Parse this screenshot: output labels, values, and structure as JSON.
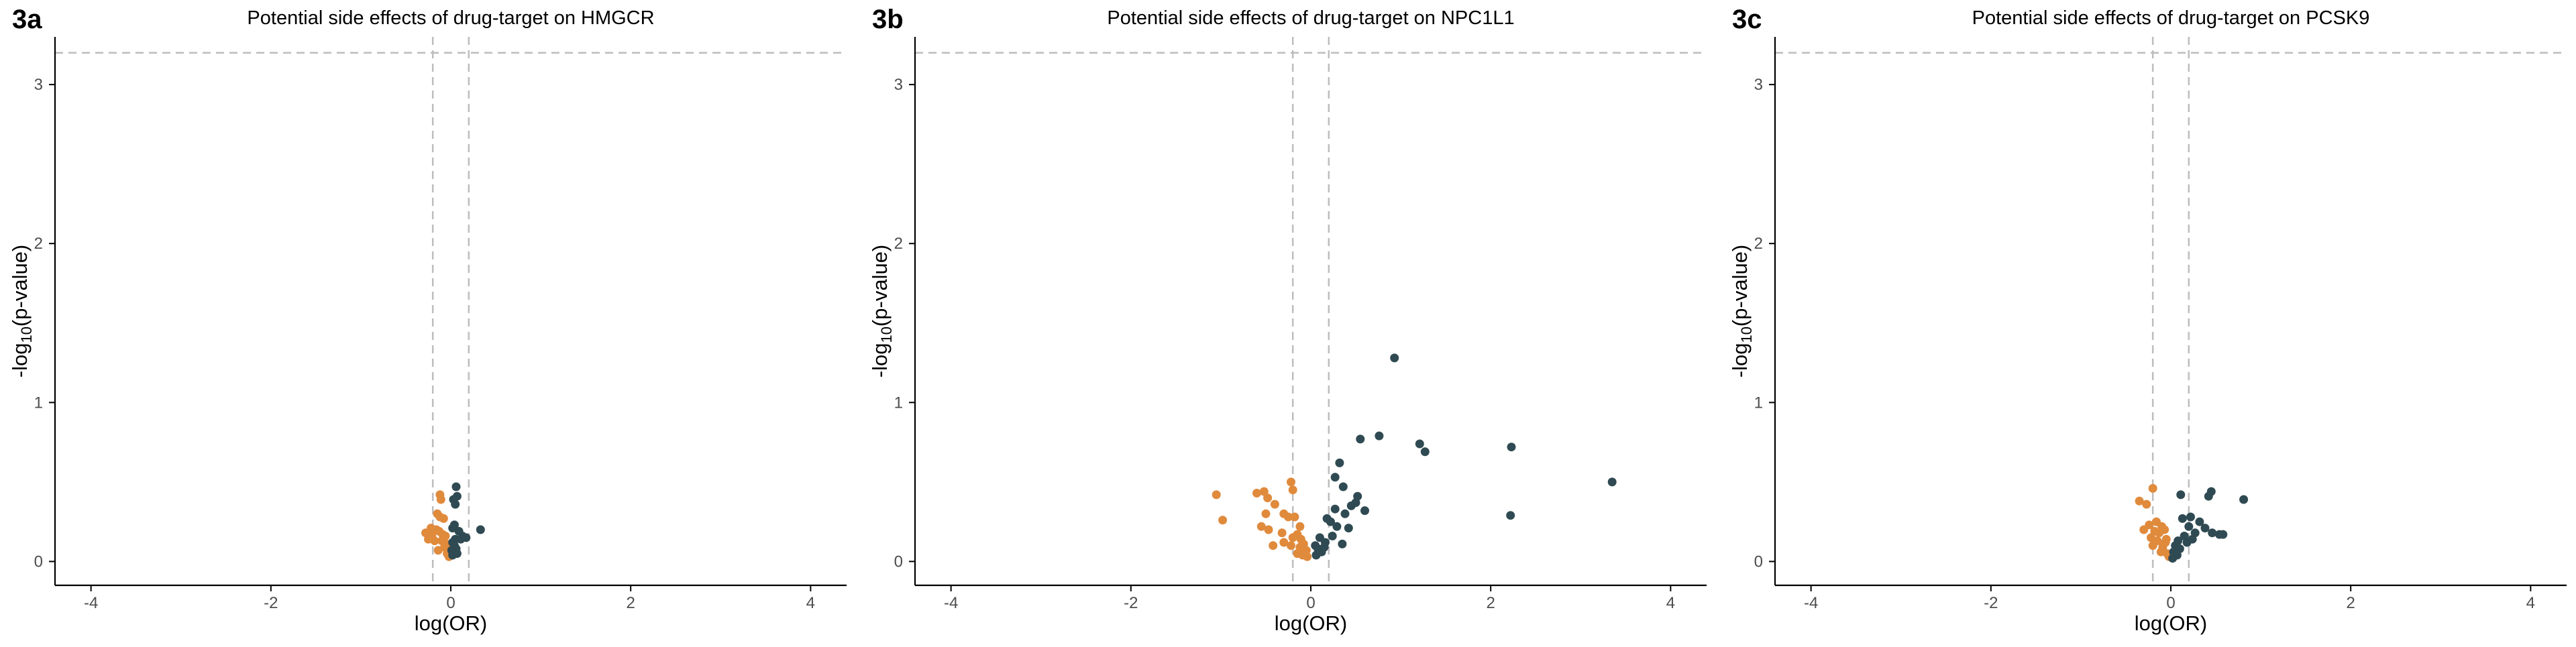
{
  "figure": {
    "colors": {
      "negative": "#E08A3C",
      "positive": "#2F4A52",
      "guide": "#BDBDBD",
      "axis": "#000000",
      "tick_text": "#4d4d4d"
    },
    "guides": {
      "x": [
        -0.2,
        0.2
      ],
      "y": 3.2
    }
  },
  "chart_data": [
    {
      "panel": "3a",
      "type": "scatter",
      "title": "Potential side effects of drug-target on HMGCR",
      "xlabel": "log(OR)",
      "ylabel": "-log10(p-value)",
      "xlim": [
        -4.4,
        4.4
      ],
      "ylim": [
        -0.15,
        3.3
      ],
      "x_ticks": [
        -4,
        -2,
        0,
        2,
        4
      ],
      "y_ticks": [
        0,
        1,
        2,
        3
      ],
      "grid": false,
      "series": [
        {
          "color": "#E08A3C",
          "points": [
            [
              -0.12,
              0.42
            ],
            [
              -0.11,
              0.39
            ],
            [
              -0.15,
              0.3
            ],
            [
              -0.12,
              0.28
            ],
            [
              -0.08,
              0.27
            ],
            [
              -0.22,
              0.21
            ],
            [
              -0.16,
              0.2
            ],
            [
              -0.13,
              0.19
            ],
            [
              -0.28,
              0.18
            ],
            [
              -0.21,
              0.16
            ],
            [
              -0.09,
              0.17
            ],
            [
              -0.06,
              0.16
            ],
            [
              -0.25,
              0.14
            ],
            [
              -0.18,
              0.13
            ],
            [
              -0.1,
              0.13
            ],
            [
              -0.05,
              0.11
            ],
            [
              -0.07,
              0.09
            ],
            [
              -0.03,
              0.08
            ],
            [
              -0.14,
              0.07
            ],
            [
              -0.04,
              0.05
            ],
            [
              -0.02,
              0.03
            ]
          ]
        },
        {
          "color": "#2F4A52",
          "points": [
            [
              0.06,
              0.47
            ],
            [
              0.07,
              0.41
            ],
            [
              0.03,
              0.39
            ],
            [
              0.05,
              0.36
            ],
            [
              0.04,
              0.23
            ],
            [
              0.02,
              0.21
            ],
            [
              0.09,
              0.19
            ],
            [
              0.13,
              0.16
            ],
            [
              0.05,
              0.14
            ],
            [
              0.02,
              0.12
            ],
            [
              0.11,
              0.14
            ],
            [
              0.33,
              0.2
            ],
            [
              0.17,
              0.15
            ],
            [
              0.04,
              0.1
            ],
            [
              0.06,
              0.08
            ],
            [
              0.03,
              0.06
            ],
            [
              0.07,
              0.05
            ],
            [
              0.02,
              0.04
            ],
            [
              0.01,
              0.07
            ]
          ]
        }
      ]
    },
    {
      "panel": "3b",
      "type": "scatter",
      "title": "Potential side effects of drug-target on NPC1L1",
      "xlabel": "log(OR)",
      "ylabel": "-log10(p-value)",
      "xlim": [
        -4.4,
        4.4
      ],
      "ylim": [
        -0.15,
        3.3
      ],
      "x_ticks": [
        -4,
        -2,
        0,
        2,
        4
      ],
      "y_ticks": [
        0,
        1,
        2,
        3
      ],
      "grid": false,
      "series": [
        {
          "color": "#E08A3C",
          "points": [
            [
              -1.05,
              0.42
            ],
            [
              -0.98,
              0.26
            ],
            [
              -0.6,
              0.43
            ],
            [
              -0.52,
              0.44
            ],
            [
              -0.48,
              0.4
            ],
            [
              -0.4,
              0.36
            ],
            [
              -0.5,
              0.3
            ],
            [
              -0.22,
              0.5
            ],
            [
              -0.2,
              0.45
            ],
            [
              -0.3,
              0.3
            ],
            [
              -0.25,
              0.28
            ],
            [
              -0.55,
              0.22
            ],
            [
              -0.47,
              0.2
            ],
            [
              -0.32,
              0.18
            ],
            [
              -0.18,
              0.28
            ],
            [
              -0.12,
              0.22
            ],
            [
              -0.15,
              0.17
            ],
            [
              -0.42,
              0.1
            ],
            [
              -0.3,
              0.12
            ],
            [
              -0.22,
              0.1
            ],
            [
              -0.12,
              0.09
            ],
            [
              -0.08,
              0.11
            ],
            [
              -0.05,
              0.07
            ],
            [
              -0.15,
              0.05
            ],
            [
              -0.09,
              0.04
            ],
            [
              -0.04,
              0.03
            ],
            [
              -0.2,
              0.15
            ],
            [
              -0.11,
              0.14
            ]
          ]
        },
        {
          "color": "#2F4A52",
          "points": [
            [
              0.93,
              1.28
            ],
            [
              0.55,
              0.77
            ],
            [
              0.76,
              0.79
            ],
            [
              1.21,
              0.74
            ],
            [
              1.27,
              0.69
            ],
            [
              2.23,
              0.72
            ],
            [
              3.35,
              0.5
            ],
            [
              2.22,
              0.29
            ],
            [
              0.32,
              0.62
            ],
            [
              0.27,
              0.53
            ],
            [
              0.36,
              0.47
            ],
            [
              0.52,
              0.41
            ],
            [
              0.5,
              0.37
            ],
            [
              0.45,
              0.35
            ],
            [
              0.27,
              0.33
            ],
            [
              0.6,
              0.32
            ],
            [
              0.38,
              0.3
            ],
            [
              0.18,
              0.27
            ],
            [
              0.22,
              0.25
            ],
            [
              0.29,
              0.22
            ],
            [
              0.42,
              0.21
            ],
            [
              0.1,
              0.15
            ],
            [
              0.16,
              0.12
            ],
            [
              0.24,
              0.16
            ],
            [
              0.08,
              0.08
            ],
            [
              0.12,
              0.06
            ],
            [
              0.06,
              0.04
            ],
            [
              0.15,
              0.09
            ],
            [
              0.35,
              0.11
            ],
            [
              0.05,
              0.1
            ]
          ]
        }
      ]
    },
    {
      "panel": "3c",
      "type": "scatter",
      "title": "Potential side effects of drug-target on PCSK9",
      "xlabel": "log(OR)",
      "ylabel": "-log10(p-value)",
      "xlim": [
        -4.4,
        4.4
      ],
      "ylim": [
        -0.15,
        3.3
      ],
      "x_ticks": [
        -4,
        -2,
        0,
        2,
        4
      ],
      "y_ticks": [
        0,
        1,
        2,
        3
      ],
      "grid": false,
      "series": [
        {
          "color": "#E08A3C",
          "points": [
            [
              -0.2,
              0.46
            ],
            [
              -0.35,
              0.38
            ],
            [
              -0.27,
              0.36
            ],
            [
              -0.24,
              0.23
            ],
            [
              -0.16,
              0.25
            ],
            [
              -0.1,
              0.22
            ],
            [
              -0.3,
              0.2
            ],
            [
              -0.18,
              0.19
            ],
            [
              -0.13,
              0.18
            ],
            [
              -0.07,
              0.2
            ],
            [
              -0.22,
              0.15
            ],
            [
              -0.15,
              0.13
            ],
            [
              -0.05,
              0.14
            ],
            [
              -0.2,
              0.1
            ],
            [
              -0.09,
              0.09
            ],
            [
              -0.11,
              0.06
            ],
            [
              -0.04,
              0.05
            ],
            [
              -0.02,
              0.03
            ],
            [
              -0.06,
              0.12
            ]
          ]
        },
        {
          "color": "#2F4A52",
          "points": [
            [
              0.11,
              0.42
            ],
            [
              0.45,
              0.44
            ],
            [
              0.42,
              0.41
            ],
            [
              0.81,
              0.39
            ],
            [
              0.22,
              0.28
            ],
            [
              0.13,
              0.27
            ],
            [
              0.32,
              0.25
            ],
            [
              0.38,
              0.21
            ],
            [
              0.2,
              0.22
            ],
            [
              0.46,
              0.18
            ],
            [
              0.54,
              0.17
            ],
            [
              0.58,
              0.17
            ],
            [
              0.27,
              0.18
            ],
            [
              0.15,
              0.16
            ],
            [
              0.08,
              0.13
            ],
            [
              0.18,
              0.12
            ],
            [
              0.05,
              0.1
            ],
            [
              0.1,
              0.08
            ],
            [
              0.03,
              0.06
            ],
            [
              0.07,
              0.04
            ],
            [
              0.02,
              0.02
            ],
            [
              0.24,
              0.14
            ]
          ]
        }
      ]
    }
  ]
}
